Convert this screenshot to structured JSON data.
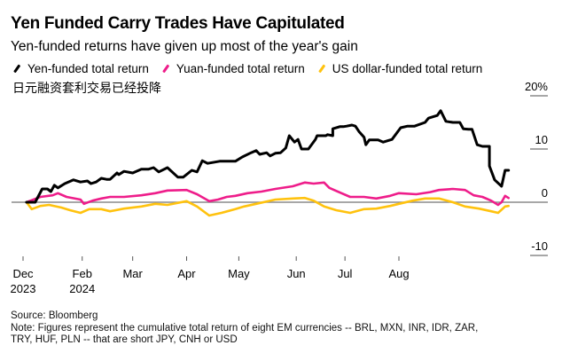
{
  "header": {
    "title": "Yen Funded Carry Trades Have Capitulated",
    "subtitle": "Yen-funded returns have given up most of the year's gain",
    "chinese_title": "日元融资套利交易已经投降"
  },
  "footer": {
    "source": "Source: Bloomberg",
    "note_line1": "Note: Figures represent the cumulative total return of eight EM currencies -- BRL, MXN, INR, IDR, ZAR,",
    "note_line2": "TRY, HUF, PLN -- that are short JPY, CNH or USD"
  },
  "chart_data": {
    "type": "line",
    "title": "Yen Funded Carry Trades Have Capitulated",
    "subtitle": "Yen-funded returns have given up most of the year's gain",
    "xlabel": "",
    "ylabel": "",
    "x_units": "days since Dec tick (approx.)",
    "xlim": [
      -7,
      292
    ],
    "ylim": [
      -10,
      20
    ],
    "y_ticks": [
      {
        "value": 20,
        "label": "20%"
      },
      {
        "value": 10,
        "label": "10"
      },
      {
        "value": 0,
        "label": "0"
      },
      {
        "value": -10,
        "label": "-10"
      }
    ],
    "x_ticks": [
      {
        "value": 0,
        "label": "Dec",
        "sublabel": "2023"
      },
      {
        "value": 34,
        "label": "Feb",
        "sublabel": "2024"
      },
      {
        "value": 63,
        "label": "Mar",
        "sublabel": ""
      },
      {
        "value": 94,
        "label": "Apr",
        "sublabel": ""
      },
      {
        "value": 124,
        "label": "May",
        "sublabel": ""
      },
      {
        "value": 157,
        "label": "Jun",
        "sublabel": ""
      },
      {
        "value": 185,
        "label": "Jul",
        "sublabel": ""
      },
      {
        "value": 216,
        "label": "Aug",
        "sublabel": ""
      }
    ],
    "grid": false,
    "zero_line": true,
    "legend_position": "top-left",
    "series": [
      {
        "name": "Yen-funded total return",
        "color": "#000000",
        "points": [
          [
            2,
            0
          ],
          [
            7,
            0
          ],
          [
            11,
            2.5
          ],
          [
            14,
            2.5
          ],
          [
            16,
            2.0
          ],
          [
            18,
            3.2
          ],
          [
            20,
            2.7
          ],
          [
            24,
            3.5
          ],
          [
            29,
            4.2
          ],
          [
            33,
            3.8
          ],
          [
            37,
            4.0
          ],
          [
            39,
            3.5
          ],
          [
            42,
            3.8
          ],
          [
            45,
            4.5
          ],
          [
            48,
            4.3
          ],
          [
            48,
            4.3
          ],
          [
            50,
            4.3
          ],
          [
            54,
            5.5
          ],
          [
            55,
            5.2
          ],
          [
            58,
            5.8
          ],
          [
            63,
            5.5
          ],
          [
            68,
            6.2
          ],
          [
            72,
            6.2
          ],
          [
            75,
            6.5
          ],
          [
            78,
            5.7
          ],
          [
            83,
            6.5
          ],
          [
            89,
            4.7
          ],
          [
            92,
            4.7
          ],
          [
            97,
            6.0
          ],
          [
            100,
            5.7
          ],
          [
            103,
            7.8
          ],
          [
            106,
            7.3
          ],
          [
            113,
            7.7
          ],
          [
            118,
            7.7
          ],
          [
            122,
            7.7
          ],
          [
            126,
            8.5
          ],
          [
            131,
            9.3
          ],
          [
            134,
            9.7
          ],
          [
            136,
            9.0
          ],
          [
            140,
            9.3
          ],
          [
            142,
            8.7
          ],
          [
            145,
            9.2
          ],
          [
            148,
            9.3
          ],
          [
            151,
            10.2
          ],
          [
            153,
            12.5
          ],
          [
            156,
            11.3
          ],
          [
            158,
            11.8
          ],
          [
            160,
            10.0
          ],
          [
            163,
            10.0
          ],
          [
            164,
            10.0
          ],
          [
            168,
            11.8
          ],
          [
            169,
            12.5
          ],
          [
            174,
            12.5
          ],
          [
            175,
            12.7
          ],
          [
            178,
            12.5
          ],
          [
            178,
            13.8
          ],
          [
            182,
            14.2
          ],
          [
            184,
            14.2
          ],
          [
            186,
            14.3
          ],
          [
            189,
            14.5
          ],
          [
            191,
            14.3
          ],
          [
            193,
            13.3
          ],
          [
            196,
            12.2
          ],
          [
            197,
            10.8
          ],
          [
            199,
            11.7
          ],
          [
            204,
            11.7
          ],
          [
            207,
            11.3
          ],
          [
            212,
            11.8
          ],
          [
            217,
            14.0
          ],
          [
            221,
            14.3
          ],
          [
            225,
            14.3
          ],
          [
            231,
            15.0
          ],
          [
            233,
            15.8
          ],
          [
            238,
            16.3
          ],
          [
            240,
            17.2
          ],
          [
            243,
            15.2
          ],
          [
            247,
            15.0
          ],
          [
            251,
            15.0
          ],
          [
            253,
            13.8
          ],
          [
            256,
            13.7
          ],
          [
            258,
            13.7
          ],
          [
            261,
            10.8
          ],
          [
            264,
            10.5
          ],
          [
            268,
            10.5
          ],
          [
            268,
            6.8
          ],
          [
            271,
            4.2
          ],
          [
            275,
            3.0
          ],
          [
            277,
            6.0
          ],
          [
            279,
            6.0
          ]
        ]
      },
      {
        "name": "Yuan-funded total return",
        "color": "#ee1d8a",
        "points": [
          [
            2,
            0
          ],
          [
            10,
            1.0
          ],
          [
            17,
            1.3
          ],
          [
            20,
            1.7
          ],
          [
            25,
            1.0
          ],
          [
            33,
            0.5
          ],
          [
            35,
            -0.3
          ],
          [
            40,
            0.3
          ],
          [
            45,
            0.7
          ],
          [
            50,
            1.0
          ],
          [
            58,
            1.0
          ],
          [
            68,
            1.3
          ],
          [
            76,
            1.7
          ],
          [
            83,
            2.2
          ],
          [
            94,
            2.3
          ],
          [
            100,
            1.5
          ],
          [
            107,
            0.2
          ],
          [
            112,
            0.5
          ],
          [
            117,
            1.0
          ],
          [
            122,
            1.2
          ],
          [
            129,
            1.7
          ],
          [
            137,
            2.0
          ],
          [
            145,
            2.5
          ],
          [
            155,
            3.0
          ],
          [
            162,
            3.7
          ],
          [
            167,
            3.5
          ],
          [
            173,
            3.7
          ],
          [
            176,
            2.7
          ],
          [
            183,
            1.7
          ],
          [
            188,
            1.0
          ],
          [
            196,
            1.0
          ],
          [
            203,
            0.7
          ],
          [
            211,
            1.2
          ],
          [
            216,
            1.7
          ],
          [
            226,
            1.5
          ],
          [
            234,
            1.9
          ],
          [
            239,
            2.3
          ],
          [
            247,
            2.5
          ],
          [
            254,
            2.3
          ],
          [
            259,
            1.3
          ],
          [
            264,
            1.0
          ],
          [
            269,
            0.3
          ],
          [
            273,
            -0.5
          ],
          [
            275,
            0.0
          ],
          [
            277,
            1.2
          ],
          [
            279,
            0.8
          ]
        ]
      },
      {
        "name": "US dollar-funded total return",
        "color": "#ffc20e",
        "points": [
          [
            2,
            0
          ],
          [
            5,
            -1.3
          ],
          [
            10,
            -0.7
          ],
          [
            15,
            -0.5
          ],
          [
            22,
            -1.0
          ],
          [
            27,
            -1.5
          ],
          [
            33,
            -2.0
          ],
          [
            38,
            -1.3
          ],
          [
            45,
            -1.3
          ],
          [
            50,
            -1.7
          ],
          [
            58,
            -1.2
          ],
          [
            68,
            -0.8
          ],
          [
            76,
            -0.3
          ],
          [
            83,
            -0.5
          ],
          [
            94,
            0.2
          ],
          [
            100,
            -0.8
          ],
          [
            107,
            -2.5
          ],
          [
            114,
            -2.0
          ],
          [
            122,
            -1.3
          ],
          [
            127,
            -0.8
          ],
          [
            134,
            -0.3
          ],
          [
            145,
            0.5
          ],
          [
            155,
            0.7
          ],
          [
            162,
            0.8
          ],
          [
            167,
            0.3
          ],
          [
            173,
            -0.8
          ],
          [
            180,
            -1.5
          ],
          [
            188,
            -2.0
          ],
          [
            196,
            -1.3
          ],
          [
            203,
            -1.2
          ],
          [
            211,
            -0.7
          ],
          [
            216,
            -0.3
          ],
          [
            224,
            0.3
          ],
          [
            231,
            0.7
          ],
          [
            239,
            0.7
          ],
          [
            247,
            0.0
          ],
          [
            254,
            -0.8
          ],
          [
            262,
            -1.2
          ],
          [
            269,
            -1.7
          ],
          [
            273,
            -2.0
          ],
          [
            277,
            -0.8
          ],
          [
            279,
            -0.7
          ]
        ]
      }
    ]
  }
}
